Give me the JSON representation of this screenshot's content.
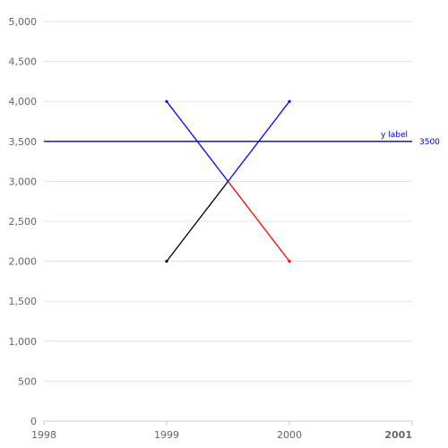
{
  "chart_data": {
    "type": "line",
    "x_ticks": [
      "1998",
      "1999",
      "2000",
      "2001"
    ],
    "x_tick_bold": [
      "2001"
    ],
    "y_ticks": [
      "0",
      "500",
      "1,000",
      "1,500",
      "2,000",
      "2,500",
      "3,000",
      "3,500",
      "4,000",
      "4,500",
      "5,000"
    ],
    "xlim": [
      1998,
      2001
    ],
    "ylim": [
      0,
      5000
    ],
    "grid": "horizontal",
    "series": [
      {
        "segments": [
          {
            "points": [
              [
                1999,
                4000
              ],
              [
                1999.5,
                3000
              ]
            ],
            "color": "#0000ff"
          },
          {
            "points": [
              [
                1999.5,
                3000
              ],
              [
                2000,
                2000
              ]
            ],
            "color": "#ff0000"
          }
        ]
      },
      {
        "segments": [
          {
            "points": [
              [
                1999,
                2000
              ],
              [
                1999.5,
                3000
              ]
            ],
            "color": "#000000"
          },
          {
            "points": [
              [
                1999.5,
                3000
              ],
              [
                2000,
                4000
              ]
            ],
            "color": "#0000ff"
          }
        ]
      }
    ],
    "reference_line": {
      "y": 3500,
      "label": "y label",
      "value_label": "3500",
      "color": "#0000cc"
    }
  }
}
